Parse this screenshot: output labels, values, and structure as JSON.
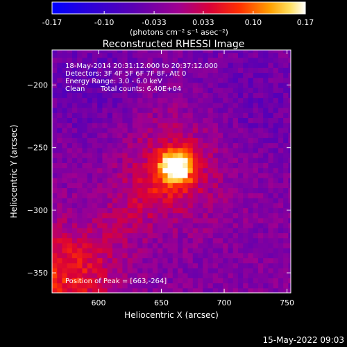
{
  "chart_data": {
    "type": "heatmap",
    "title": "Reconstructed RHESSI Image",
    "colorbar": {
      "ticks": [
        "-0.17",
        "-0.10",
        "-0.033",
        "0.033",
        "0.10",
        "0.17"
      ],
      "tick_values": [
        -0.17,
        -0.1,
        -0.033,
        0.033,
        0.1,
        0.17
      ],
      "range": [
        -0.17,
        0.17
      ],
      "units": "(photons cm⁻² s⁻¹ asec⁻²)"
    },
    "xlabel": "Heliocentric X (arcsec)",
    "ylabel": "Heliocentric Y (arcsec)",
    "xlim": [
      563,
      753
    ],
    "ylim": [
      -366,
      -172
    ],
    "xticks": [
      600,
      650,
      700,
      750
    ],
    "yticks": [
      -350,
      -300,
      -250,
      -200
    ],
    "info_lines": [
      "18-May-2014 20:31:12.000 to 20:37:12.000",
      "Detectors: 3F 4F 5F 6F 7F 8F, Att 0",
      "Energy Range: 3.0 - 6.0 keV"
    ],
    "clean_label": "Clean",
    "total_counts": "Total counts: 6.40E+04",
    "peak_text": "Position of Peak = [663,-264]",
    "peak": {
      "x": 663,
      "y": -264
    },
    "timestamp": "15-May-2022 09:03",
    "colors": {
      "background": "#000000",
      "text": "#ffffff"
    }
  }
}
